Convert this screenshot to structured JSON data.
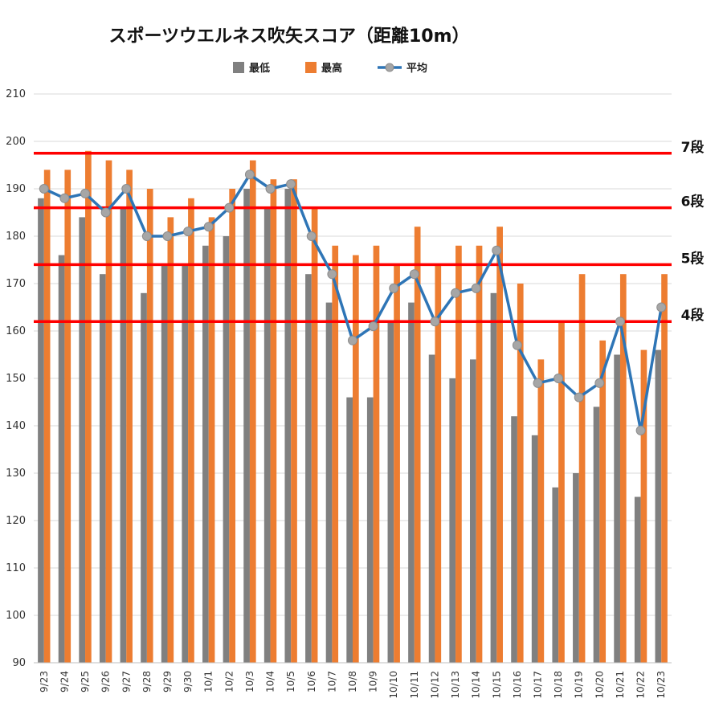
{
  "chart_data": {
    "type": "bar",
    "title": "スポーツウエルネス吹矢スコア（距離10m）",
    "categories": [
      "9/23",
      "9/24",
      "9/25",
      "9/26",
      "9/27",
      "9/28",
      "9/29",
      "9/30",
      "10/1",
      "10/2",
      "10/3",
      "10/4",
      "10/5",
      "10/6",
      "10/7",
      "10/8",
      "10/9",
      "10/10",
      "10/11",
      "10/12",
      "10/13",
      "10/14",
      "10/15",
      "10/16",
      "10/17",
      "10/18",
      "10/19",
      "10/20",
      "10/21",
      "10/22",
      "10/23"
    ],
    "series": [
      {
        "name": "最低",
        "type": "bar",
        "color": "#808080",
        "values": [
          188,
          176,
          184,
          172,
          186,
          168,
          174,
          174,
          178,
          180,
          190,
          186,
          190,
          172,
          166,
          146,
          146,
          162,
          166,
          155,
          150,
          154,
          168,
          142,
          138,
          127,
          130,
          144,
          155,
          125,
          156
        ]
      },
      {
        "name": "最高",
        "type": "bar",
        "color": "#ED7D31",
        "values": [
          194,
          194,
          198,
          196,
          194,
          190,
          184,
          188,
          184,
          190,
          196,
          192,
          192,
          186,
          178,
          176,
          178,
          174,
          182,
          174,
          178,
          178,
          182,
          170,
          154,
          162,
          172,
          158,
          172,
          156,
          172
        ]
      },
      {
        "name": "平均",
        "type": "line",
        "color": "#2E75B6",
        "values": [
          190,
          188,
          189,
          185,
          190,
          180,
          180,
          181,
          182,
          186,
          193,
          190,
          191,
          180,
          172,
          158,
          161,
          169,
          172,
          162,
          168,
          169,
          177,
          157,
          149,
          150,
          146,
          149,
          162,
          139,
          165
        ]
      }
    ],
    "ylim": [
      90,
      210
    ],
    "yticks": [
      90,
      100,
      110,
      120,
      130,
      140,
      150,
      160,
      170,
      180,
      190,
      200,
      210
    ],
    "reference_lines": [
      {
        "label": "7段",
        "value": 197.5,
        "color": "#FF0000"
      },
      {
        "label": "6段",
        "value": 186,
        "color": "#FF0000"
      },
      {
        "label": "5段",
        "value": 174,
        "color": "#FF0000"
      },
      {
        "label": "4段",
        "value": 162,
        "color": "#FF0000"
      }
    ],
    "grid": true,
    "legend_position": "top"
  }
}
